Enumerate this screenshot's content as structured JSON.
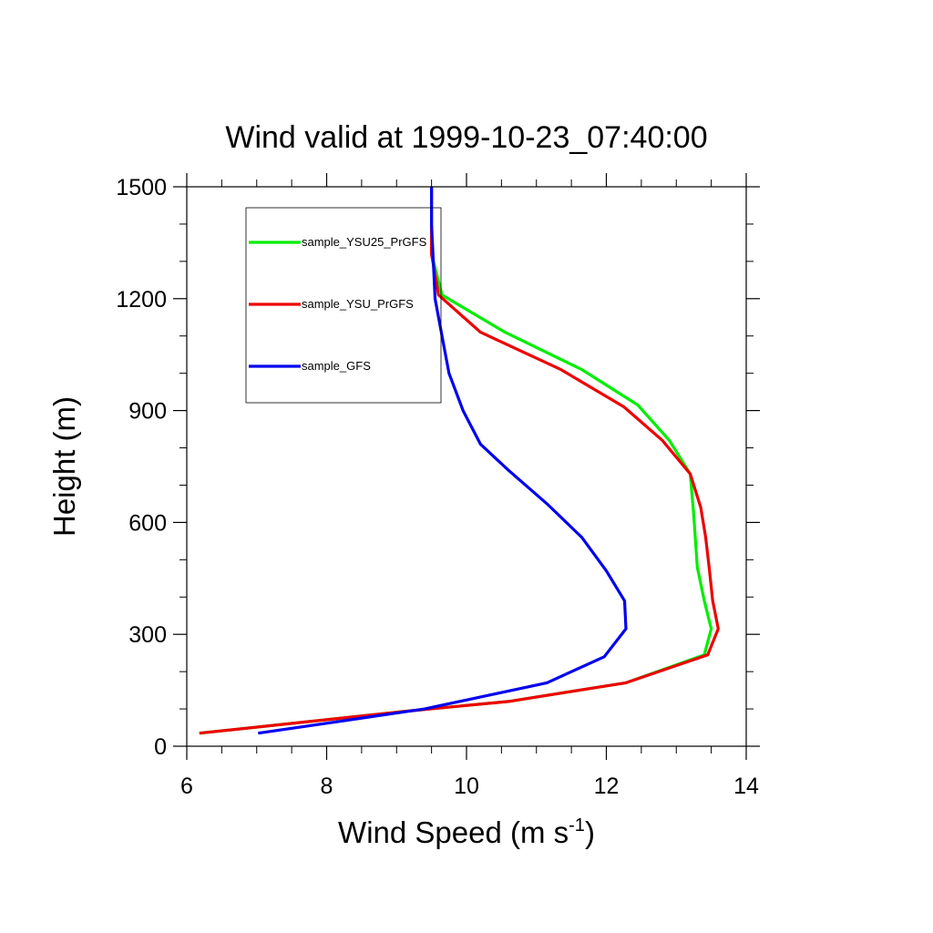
{
  "chart_data": {
    "type": "line",
    "title": "Wind valid at 1999-10-23_07:40:00",
    "xlabel": {
      "text": "Wind Speed (m s",
      "superscript": "-1",
      "close": ")"
    },
    "ylabel": "Height (m)",
    "xlim": [
      6,
      14
    ],
    "ylim": [
      0,
      1500
    ],
    "xticks": [
      6,
      8,
      10,
      12,
      14
    ],
    "yticks": [
      0,
      300,
      600,
      900,
      1200,
      1500
    ],
    "xtick_labels": [
      "6",
      "8",
      "10",
      "12",
      "14"
    ],
    "ytick_labels": [
      "0",
      "300",
      "600",
      "900",
      "1200",
      "1500"
    ],
    "grid": false,
    "legend_position": "top-left",
    "series": [
      {
        "name": "sample_YSU25_PrGFS",
        "color": "#00ee00",
        "x": [
          6.18,
          9.2,
          10.6,
          12.28,
          13.4,
          13.5,
          13.4,
          13.3,
          13.25,
          13.2,
          12.9,
          12.45,
          11.65,
          10.55,
          9.65,
          9.5,
          9.5,
          9.5
        ],
        "y": [
          35,
          95,
          120,
          170,
          245,
          315,
          390,
          480,
          620,
          730,
          820,
          915,
          1010,
          1110,
          1210,
          1320,
          1400,
          1500
        ]
      },
      {
        "name": "sample_YSU_PrGFS",
        "color": "#ee0000",
        "x": [
          6.18,
          9.2,
          10.6,
          12.28,
          13.45,
          13.6,
          13.52,
          13.47,
          13.42,
          13.35,
          13.2,
          12.8,
          12.25,
          11.35,
          10.2,
          9.6,
          9.5,
          9.5,
          9.5
        ],
        "y": [
          35,
          95,
          120,
          170,
          245,
          315,
          390,
          480,
          560,
          640,
          730,
          820,
          910,
          1010,
          1110,
          1210,
          1320,
          1400,
          1500
        ]
      },
      {
        "name": "sample_GFS",
        "color": "#0000ee",
        "x": [
          7.02,
          9.4,
          11.15,
          11.97,
          12.28,
          12.26,
          12.0,
          11.65,
          11.15,
          10.6,
          10.2,
          9.95,
          9.75,
          9.65,
          9.55,
          9.52,
          9.5,
          9.5
        ],
        "y": [
          35,
          100,
          170,
          240,
          315,
          390,
          470,
          560,
          650,
          740,
          810,
          900,
          1000,
          1100,
          1200,
          1320,
          1400,
          1500
        ]
      }
    ]
  }
}
